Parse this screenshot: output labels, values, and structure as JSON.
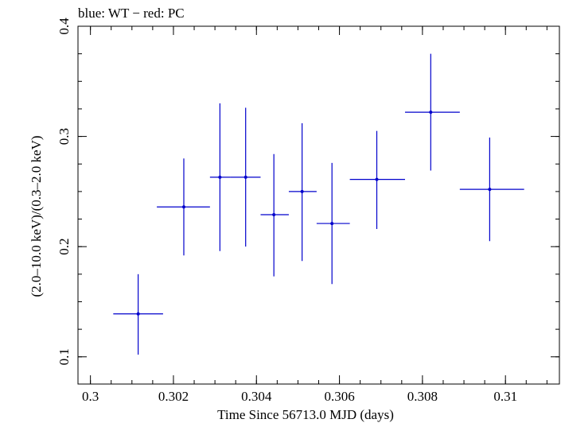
{
  "chart_data": {
    "type": "scatter",
    "title": "blue: WT − red: PC",
    "xlabel": "Time Since 56713.0 MJD (days)",
    "ylabel": "(2.0–10.0 keV)/(0.3–2.0 keV)",
    "xlim": [
      0.2997,
      0.3113
    ],
    "ylim": [
      0.0753,
      0.4
    ],
    "x_ticks": [
      0.3,
      0.302,
      0.304,
      0.306,
      0.308,
      0.31
    ],
    "x_tick_labels": [
      "0.3",
      "0.302",
      "0.304",
      "0.306",
      "0.308",
      "0.31"
    ],
    "y_ticks": [
      0.1,
      0.2,
      0.3,
      0.4
    ],
    "y_tick_labels": [
      "0.1",
      "0.2",
      "0.3",
      "0.4"
    ],
    "grid": false,
    "series": [
      {
        "color": "#0000cc",
        "points": [
          {
            "x": 0.30115,
            "xlo": 0.30055,
            "xhi": 0.30175,
            "y": 0.139,
            "ylo": 0.102,
            "yhi": 0.175
          },
          {
            "x": 0.30225,
            "xlo": 0.3016,
            "xhi": 0.30288,
            "y": 0.236,
            "ylo": 0.192,
            "yhi": 0.28
          },
          {
            "x": 0.30312,
            "xlo": 0.30288,
            "xhi": 0.30338,
            "y": 0.263,
            "ylo": 0.196,
            "yhi": 0.33
          },
          {
            "x": 0.30374,
            "xlo": 0.30338,
            "xhi": 0.3041,
            "y": 0.263,
            "ylo": 0.2,
            "yhi": 0.326
          },
          {
            "x": 0.30442,
            "xlo": 0.3041,
            "xhi": 0.30478,
            "y": 0.229,
            "ylo": 0.173,
            "yhi": 0.284
          },
          {
            "x": 0.3051,
            "xlo": 0.30478,
            "xhi": 0.30545,
            "y": 0.25,
            "ylo": 0.187,
            "yhi": 0.312
          },
          {
            "x": 0.30582,
            "xlo": 0.30545,
            "xhi": 0.30625,
            "y": 0.221,
            "ylo": 0.166,
            "yhi": 0.276
          },
          {
            "x": 0.3069,
            "xlo": 0.30625,
            "xhi": 0.30758,
            "y": 0.261,
            "ylo": 0.216,
            "yhi": 0.305
          },
          {
            "x": 0.3082,
            "xlo": 0.30758,
            "xhi": 0.3089,
            "y": 0.322,
            "ylo": 0.269,
            "yhi": 0.375
          },
          {
            "x": 0.30962,
            "xlo": 0.3089,
            "xhi": 0.31045,
            "y": 0.252,
            "ylo": 0.205,
            "yhi": 0.299
          }
        ]
      }
    ]
  }
}
